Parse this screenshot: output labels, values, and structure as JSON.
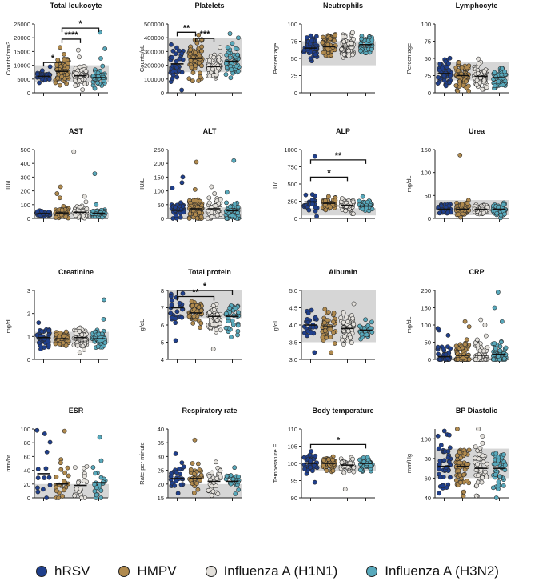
{
  "colors": {
    "hRSV": "#1f3f8c",
    "HMPV": "#b08a4e",
    "H1N1": "#e4e1dc",
    "H3N2": "#58a9bc",
    "reference_band": "#d6d6d6",
    "point_outline": "#2a2a2a"
  },
  "legend": [
    {
      "label": "hRSV",
      "color_key": "hRSV"
    },
    {
      "label": "HMPV",
      "color_key": "HMPV"
    },
    {
      "label": "Influenza A (H1N1)",
      "color_key": "H1N1"
    },
    {
      "label": "Influenza A (H3N2)",
      "color_key": "H3N2"
    }
  ],
  "chart_data": [
    {
      "type": "scatter",
      "title": "Total leukocyte",
      "ylabel": "Counts/mm3",
      "ylim": [
        0,
        25000
      ],
      "yticks": [
        0,
        5000,
        10000,
        15000,
        20000,
        25000
      ],
      "ytick_labels": [
        "0",
        "5000",
        "10000",
        "15000",
        "20000",
        "25000"
      ],
      "reference_range": [
        4000,
        10000
      ],
      "series": [
        {
          "name": "hRSV",
          "n": 45,
          "median": 6000,
          "spread": 900,
          "high": [
            9500
          ]
        },
        {
          "name": "HMPV",
          "n": 75,
          "median": 7800,
          "spread": 2200,
          "high": [
            14000,
            16500
          ]
        },
        {
          "name": "Influenza A (H1N1)",
          "n": 55,
          "median": 6200,
          "spread": 1600,
          "high": [
            13000,
            15500
          ]
        },
        {
          "name": "Influenza A (H3N2)",
          "n": 45,
          "median": 5500,
          "spread": 1700,
          "high": [
            12500,
            16000,
            22000
          ]
        }
      ],
      "significance": [
        {
          "from": 0,
          "to": 1,
          "label": "*",
          "y": 11000
        },
        {
          "from": 1,
          "to": 2,
          "label": "****",
          "y": 19500
        },
        {
          "from": 1,
          "to": 3,
          "label": "*",
          "y": 23500
        }
      ]
    },
    {
      "type": "scatter",
      "title": "Platelets",
      "ylabel": "Counts/uL",
      "ylim": [
        0,
        500000
      ],
      "yticks": [
        0,
        100000,
        200000,
        300000,
        400000,
        500000
      ],
      "ytick_labels": [
        "0",
        "100000",
        "200000",
        "300000",
        "400000",
        "500000"
      ],
      "reference_range": [
        150000,
        400000
      ],
      "series": [
        {
          "name": "hRSV",
          "n": 35,
          "median": 210000,
          "spread": 60000,
          "high": [
            350000
          ],
          "low": [
            20000
          ]
        },
        {
          "name": "HMPV",
          "n": 75,
          "median": 250000,
          "spread": 65000,
          "high": [
            420000
          ]
        },
        {
          "name": "Influenza A (H1N1)",
          "n": 60,
          "median": 190000,
          "spread": 45000,
          "high": [
            330000
          ]
        },
        {
          "name": "Influenza A (H3N2)",
          "n": 50,
          "median": 230000,
          "spread": 55000,
          "high": [
            400000,
            430000
          ]
        }
      ],
      "significance": [
        {
          "from": 0,
          "to": 1,
          "label": "**",
          "y": 440000
        },
        {
          "from": 1,
          "to": 2,
          "label": "***",
          "y": 395000
        }
      ]
    },
    {
      "type": "scatter",
      "title": "Neutrophils",
      "ylabel": "Percentage",
      "ylim": [
        0,
        100
      ],
      "yticks": [
        0,
        25,
        50,
        75,
        100
      ],
      "ytick_labels": [
        "0",
        "25",
        "50",
        "75",
        "100"
      ],
      "reference_range": [
        40,
        75
      ],
      "series": [
        {
          "name": "hRSV",
          "n": 50,
          "median": 65,
          "spread": 9
        },
        {
          "name": "HMPV",
          "n": 75,
          "median": 67,
          "spread": 9
        },
        {
          "name": "Influenza A (H1N1)",
          "n": 65,
          "median": 68,
          "spread": 10
        },
        {
          "name": "Influenza A (H3N2)",
          "n": 50,
          "median": 70,
          "spread": 8
        }
      ],
      "significance": []
    },
    {
      "type": "scatter",
      "title": "Lymphocyte",
      "ylabel": "Percentage",
      "ylim": [
        0,
        100
      ],
      "yticks": [
        0,
        25,
        50,
        75,
        100
      ],
      "ytick_labels": [
        "0",
        "25",
        "50",
        "75",
        "100"
      ],
      "reference_range": [
        18,
        45
      ],
      "series": [
        {
          "name": "hRSV",
          "n": 50,
          "median": 28,
          "spread": 9
        },
        {
          "name": "HMPV",
          "n": 75,
          "median": 25,
          "spread": 9
        },
        {
          "name": "Influenza A (H1N1)",
          "n": 65,
          "median": 24,
          "spread": 9
        },
        {
          "name": "Influenza A (H3N2)",
          "n": 50,
          "median": 22,
          "spread": 9
        }
      ],
      "significance": []
    },
    {
      "type": "scatter",
      "title": "AST",
      "ylabel": "IU/L",
      "ylim": [
        0,
        500
      ],
      "yticks": [
        0,
        100,
        200,
        300,
        400,
        500
      ],
      "ytick_labels": [
        "0",
        "100",
        "200",
        "300",
        "400",
        "500"
      ],
      "reference_range": [
        0,
        40
      ],
      "series": [
        {
          "name": "hRSV",
          "n": 40,
          "median": 35,
          "spread": 10
        },
        {
          "name": "HMPV",
          "n": 70,
          "median": 40,
          "spread": 20,
          "high": [
            150,
            180,
            230
          ]
        },
        {
          "name": "Influenza A (H1N1)",
          "n": 55,
          "median": 45,
          "spread": 20,
          "high": [
            120,
            160,
            485
          ]
        },
        {
          "name": "Influenza A (H3N2)",
          "n": 45,
          "median": 38,
          "spread": 15,
          "high": [
            100,
            325
          ]
        }
      ],
      "significance": []
    },
    {
      "type": "scatter",
      "title": "ALT",
      "ylabel": "IU/L",
      "ylim": [
        0,
        250
      ],
      "yticks": [
        0,
        50,
        100,
        150,
        200,
        250
      ],
      "ytick_labels": [
        "0",
        "50",
        "100",
        "150",
        "200",
        "250"
      ],
      "reference_range": [
        0,
        40
      ],
      "series": [
        {
          "name": "hRSV",
          "n": 40,
          "median": 30,
          "spread": 15,
          "high": [
            110,
            130,
            150
          ]
        },
        {
          "name": "HMPV",
          "n": 70,
          "median": 35,
          "spread": 20,
          "high": [
            105,
            205
          ]
        },
        {
          "name": "Influenza A (H1N1)",
          "n": 55,
          "median": 35,
          "spread": 18,
          "high": [
            90,
            115
          ]
        },
        {
          "name": "Influenza A (H3N2)",
          "n": 45,
          "median": 28,
          "spread": 14,
          "high": [
            95,
            210
          ]
        }
      ],
      "significance": []
    },
    {
      "type": "scatter",
      "title": "ALP",
      "ylabel": "U/L",
      "ylim": [
        0,
        1000
      ],
      "yticks": [
        0,
        250,
        500,
        750,
        1000
      ],
      "ytick_labels": [
        "0",
        "250",
        "500",
        "750",
        "1000"
      ],
      "reference_range": [
        44,
        147
      ],
      "series": [
        {
          "name": "hRSV",
          "n": 25,
          "median": 240,
          "spread": 60,
          "high": [
            900
          ],
          "low": [
            30
          ]
        },
        {
          "name": "HMPV",
          "n": 50,
          "median": 220,
          "spread": 50
        },
        {
          "name": "Influenza A (H1N1)",
          "n": 55,
          "median": 190,
          "spread": 50
        },
        {
          "name": "Influenza A (H3N2)",
          "n": 35,
          "median": 180,
          "spread": 45
        }
      ],
      "significance": [
        {
          "from": 0,
          "to": 2,
          "label": "*",
          "y": 600
        },
        {
          "from": 0,
          "to": 3,
          "label": "**",
          "y": 850
        }
      ]
    },
    {
      "type": "scatter",
      "title": "Urea",
      "ylabel": "mg/dL",
      "ylim": [
        0,
        150
      ],
      "yticks": [
        0,
        50,
        100,
        150
      ],
      "ytick_labels": [
        "0",
        "50",
        "100",
        "150"
      ],
      "reference_range": [
        7,
        40
      ],
      "series": [
        {
          "name": "hRSV",
          "n": 30,
          "median": 20,
          "spread": 6
        },
        {
          "name": "HMPV",
          "n": 60,
          "median": 20,
          "spread": 7,
          "high": [
            138
          ]
        },
        {
          "name": "Influenza A (H1N1)",
          "n": 55,
          "median": 20,
          "spread": 7
        },
        {
          "name": "Influenza A (H3N2)",
          "n": 40,
          "median": 20,
          "spread": 7
        }
      ],
      "significance": []
    },
    {
      "type": "scatter",
      "title": "Creatinine",
      "ylabel": "mg/dL",
      "ylim": [
        0,
        3
      ],
      "yticks": [
        0,
        1,
        2,
        3
      ],
      "ytick_labels": [
        "0",
        "1",
        "2",
        "3"
      ],
      "reference_range": [
        0.7,
        1.2
      ],
      "series": [
        {
          "name": "hRSV",
          "n": 40,
          "median": 0.95,
          "spread": 0.2,
          "high": [
            1.6
          ],
          "low": [
            0.45
          ]
        },
        {
          "name": "HMPV",
          "n": 60,
          "median": 0.9,
          "spread": 0.15
        },
        {
          "name": "Influenza A (H1N1)",
          "n": 60,
          "median": 0.95,
          "spread": 0.2,
          "low": [
            0.3
          ]
        },
        {
          "name": "Influenza A (H3N2)",
          "n": 45,
          "median": 0.9,
          "spread": 0.18,
          "high": [
            1.75,
            2.6
          ]
        }
      ],
      "significance": []
    },
    {
      "type": "scatter",
      "title": "Total protein",
      "ylabel": "g/dL",
      "ylim": [
        4,
        8
      ],
      "yticks": [
        4,
        5,
        6,
        7,
        8
      ],
      "ytick_labels": [
        "4",
        "5",
        "6",
        "7",
        "8"
      ],
      "reference_range": [
        6.4,
        8.0
      ],
      "series": [
        {
          "name": "hRSV",
          "n": 25,
          "median": 7.0,
          "spread": 0.5,
          "low": [
            5.1
          ]
        },
        {
          "name": "HMPV",
          "n": 50,
          "median": 6.7,
          "spread": 0.4
        },
        {
          "name": "Influenza A (H1N1)",
          "n": 55,
          "median": 6.5,
          "spread": 0.45,
          "low": [
            4.6
          ]
        },
        {
          "name": "Influenza A (H3N2)",
          "n": 35,
          "median": 6.5,
          "spread": 0.45
        }
      ],
      "significance": [
        {
          "from": 0,
          "to": 2,
          "label": "**",
          "y": 7.65
        },
        {
          "from": 0,
          "to": 3,
          "label": "*",
          "y": 8.0
        }
      ]
    },
    {
      "type": "scatter",
      "title": "Albumin",
      "ylabel": "g/dL",
      "ylim": [
        3.0,
        5.0
      ],
      "yticks": [
        3.0,
        3.5,
        4.0,
        4.5,
        5.0
      ],
      "ytick_labels": [
        "3.0",
        "3.5",
        "4.0",
        "4.5",
        "5.0"
      ],
      "reference_range": [
        3.5,
        5.0
      ],
      "series": [
        {
          "name": "hRSV",
          "n": 25,
          "median": 4.0,
          "spread": 0.18,
          "low": [
            3.2
          ]
        },
        {
          "name": "HMPV",
          "n": 45,
          "median": 3.95,
          "spread": 0.2,
          "low": [
            3.2
          ]
        },
        {
          "name": "Influenza A (H1N1)",
          "n": 50,
          "median": 3.9,
          "spread": 0.25,
          "high": [
            4.35
          ]
        },
        {
          "name": "Influenza A (H3N2)",
          "n": 30,
          "median": 3.85,
          "spread": 0.15
        }
      ],
      "significance": []
    },
    {
      "type": "scatter",
      "title": "CRP",
      "ylabel": "mg/dL",
      "ylim": [
        0,
        200
      ],
      "yticks": [
        0,
        50,
        100,
        150,
        200
      ],
      "ytick_labels": [
        "0",
        "50",
        "100",
        "150",
        "200"
      ],
      "reference_range": [
        0,
        6
      ],
      "series": [
        {
          "name": "hRSV",
          "n": 35,
          "median": 8,
          "spread": 20,
          "high": [
            70,
            85,
            90
          ]
        },
        {
          "name": "HMPV",
          "n": 65,
          "median": 12,
          "spread": 25,
          "high": [
            95,
            110
          ]
        },
        {
          "name": "Influenza A (H1N1)",
          "n": 55,
          "median": 12,
          "spread": 25,
          "high": [
            100,
            115
          ]
        },
        {
          "name": "Influenza A (H3N2)",
          "n": 45,
          "median": 15,
          "spread": 25,
          "high": [
            110,
            150,
            195
          ]
        }
      ],
      "significance": []
    },
    {
      "type": "scatter",
      "title": "ESR",
      "ylabel": "mm/hr",
      "ylim": [
        0,
        100
      ],
      "yticks": [
        0,
        20,
        40,
        60,
        80,
        100
      ],
      "ytick_labels": [
        "0",
        "20",
        "40",
        "60",
        "80",
        "100"
      ],
      "reference_range": [
        0,
        20
      ],
      "series": [
        {
          "name": "hRSV",
          "n": 12,
          "median": 35,
          "spread": 25,
          "high": [
            93,
            98
          ]
        },
        {
          "name": "HMPV",
          "n": 22,
          "median": 20,
          "spread": 15,
          "high": [
            97
          ]
        },
        {
          "name": "Influenza A (H1N1)",
          "n": 18,
          "median": 18,
          "spread": 14
        },
        {
          "name": "Influenza A (H3N2)",
          "n": 22,
          "median": 22,
          "spread": 16,
          "high": [
            88
          ]
        }
      ],
      "significance": []
    },
    {
      "type": "scatter",
      "title": "Respiratory rate",
      "ylabel": "Rate per minute",
      "ylim": [
        15,
        40
      ],
      "yticks": [
        15,
        20,
        25,
        30,
        35,
        40
      ],
      "ytick_labels": [
        "15",
        "20",
        "25",
        "30",
        "35",
        "40"
      ],
      "reference_range": [
        15,
        20
      ],
      "series": [
        {
          "name": "hRSV",
          "n": 25,
          "median": 22,
          "spread": 2.5,
          "high": [
            31
          ]
        },
        {
          "name": "HMPV",
          "n": 30,
          "median": 22,
          "spread": 2.5,
          "high": [
            36
          ]
        },
        {
          "name": "Influenza A (H1N1)",
          "n": 28,
          "median": 21,
          "spread": 2.5,
          "high": [
            28
          ]
        },
        {
          "name": "Influenza A (H3N2)",
          "n": 22,
          "median": 21,
          "spread": 2.0,
          "high": [
            26
          ]
        }
      ],
      "significance": []
    },
    {
      "type": "scatter",
      "title": "Body temperature",
      "ylabel": "Temperature F",
      "ylim": [
        90,
        110
      ],
      "yticks": [
        90,
        95,
        100,
        105,
        110
      ],
      "ytick_labels": [
        "90",
        "95",
        "100",
        "105",
        "110"
      ],
      "reference_range": [
        97.7,
        99.5
      ],
      "series": [
        {
          "name": "hRSV",
          "n": 40,
          "median": 100,
          "spread": 1.3,
          "high": [
            103.5
          ],
          "low": [
            94.5
          ]
        },
        {
          "name": "HMPV",
          "n": 45,
          "median": 100,
          "spread": 1.0
        },
        {
          "name": "Influenza A (H1N1)",
          "n": 45,
          "median": 99.5,
          "spread": 1.0,
          "low": [
            92.5
          ]
        },
        {
          "name": "Influenza A (H3N2)",
          "n": 40,
          "median": 100,
          "spread": 1.0
        }
      ],
      "significance": [
        {
          "from": 0,
          "to": 3,
          "label": "*",
          "y": 105.5
        }
      ]
    },
    {
      "type": "scatter",
      "title": "BP Diastolic",
      "ylabel": "mm/Hg",
      "ylim": [
        40,
        110
      ],
      "yticks": [
        40,
        60,
        80,
        100
      ],
      "ytick_labels": [
        "40",
        "60",
        "80",
        "100"
      ],
      "reference_range": [
        60,
        90
      ],
      "series": [
        {
          "name": "hRSV",
          "n": 40,
          "median": 72,
          "spread": 12,
          "high": [
            108
          ],
          "low": [
            52
          ]
        },
        {
          "name": "HMPV",
          "n": 55,
          "median": 72,
          "spread": 12,
          "high": [
            110
          ]
        },
        {
          "name": "Influenza A (H1N1)",
          "n": 45,
          "median": 70,
          "spread": 13,
          "high": [
            110
          ],
          "low": [
            42
          ]
        },
        {
          "name": "Influenza A (H3N2)",
          "n": 40,
          "median": 70,
          "spread": 12,
          "low": [
            40
          ]
        }
      ],
      "significance": []
    }
  ]
}
